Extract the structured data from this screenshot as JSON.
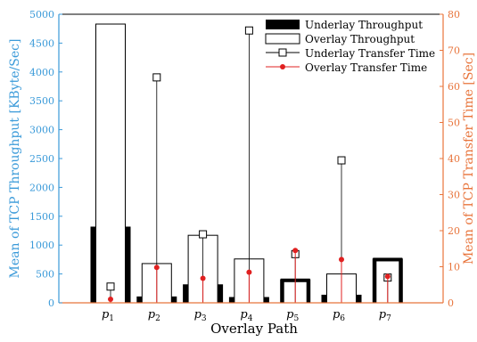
{
  "chart_data": {
    "type": "bar",
    "xlabel": "Overlay Path",
    "ylabel_left": "Mean of TCP Throughput [KByte/Sec]",
    "ylabel_right": "Mean of TCP Transfer Time [Sec]",
    "categories": [
      "p1",
      "p2",
      "p3",
      "p4",
      "p5",
      "p6",
      "p7"
    ],
    "category_base": [
      "p",
      "p",
      "p",
      "p",
      "p",
      "p",
      "p"
    ],
    "category_sub": [
      "1",
      "2",
      "3",
      "4",
      "5",
      "6",
      "7"
    ],
    "ylim_left": [
      0,
      5000
    ],
    "yticks_left": [
      0,
      500,
      1000,
      1500,
      2000,
      2500,
      3000,
      3500,
      4000,
      4500,
      5000
    ],
    "ylim_right": [
      0,
      80
    ],
    "yticks_right": [
      0,
      10,
      20,
      30,
      40,
      50,
      60,
      70,
      80
    ],
    "series": [
      {
        "name": "Underlay Throughput",
        "axis": "left",
        "kind": "bar-filled",
        "values": [
          1320,
          110,
          320,
          100,
          420,
          140,
          780
        ]
      },
      {
        "name": "Overlay Throughput",
        "axis": "left",
        "kind": "bar-outline",
        "values": [
          4830,
          680,
          1170,
          760,
          400,
          500,
          760
        ]
      },
      {
        "name": "Underlay Transfer Time",
        "axis": "right",
        "kind": "stem-square",
        "values": [
          4.5,
          62.5,
          19,
          75.5,
          13.5,
          39.5,
          7
        ]
      },
      {
        "name": "Overlay Transfer Time",
        "axis": "right",
        "kind": "stem-dot",
        "values": [
          1,
          9.8,
          6.8,
          8.5,
          14.5,
          12,
          7.3
        ]
      }
    ],
    "legend_position": "top-right",
    "grid": false
  },
  "colors": {
    "left_axis": "#3a9ad9",
    "right_axis": "#e8743b",
    "overlay_dot": "#e02020",
    "ink": "#000000"
  }
}
